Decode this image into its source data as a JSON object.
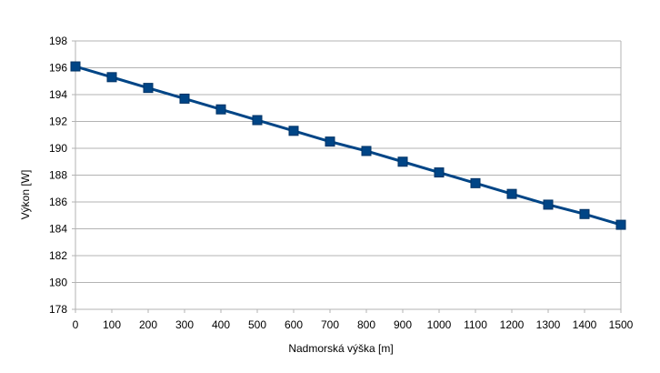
{
  "chart_data": {
    "type": "line",
    "title": "",
    "xlabel": "Nadmorská výška [m]",
    "ylabel": "Výkon [W]",
    "x": [
      0,
      100,
      200,
      300,
      400,
      500,
      600,
      700,
      800,
      900,
      1000,
      1100,
      1200,
      1300,
      1400,
      1500
    ],
    "series": [
      {
        "values": [
          196.1,
          195.3,
          194.5,
          193.7,
          192.9,
          192.1,
          191.3,
          190.5,
          189.8,
          189.0,
          188.2,
          187.4,
          186.6,
          185.8,
          185.1,
          184.3
        ]
      }
    ],
    "xlim": [
      0,
      1500
    ],
    "ylim": [
      178,
      198
    ],
    "x_ticks": [
      0,
      100,
      200,
      300,
      400,
      500,
      600,
      700,
      800,
      900,
      1000,
      1100,
      1200,
      1300,
      1400,
      1500
    ],
    "y_ticks": [
      178,
      180,
      182,
      184,
      186,
      188,
      190,
      192,
      194,
      196,
      198
    ],
    "grid": true,
    "legend": "none",
    "marker": "square",
    "colors": {
      "line": "#004586",
      "marker": "#004586",
      "grid": "#b3b3b3",
      "text": "#000000"
    }
  }
}
